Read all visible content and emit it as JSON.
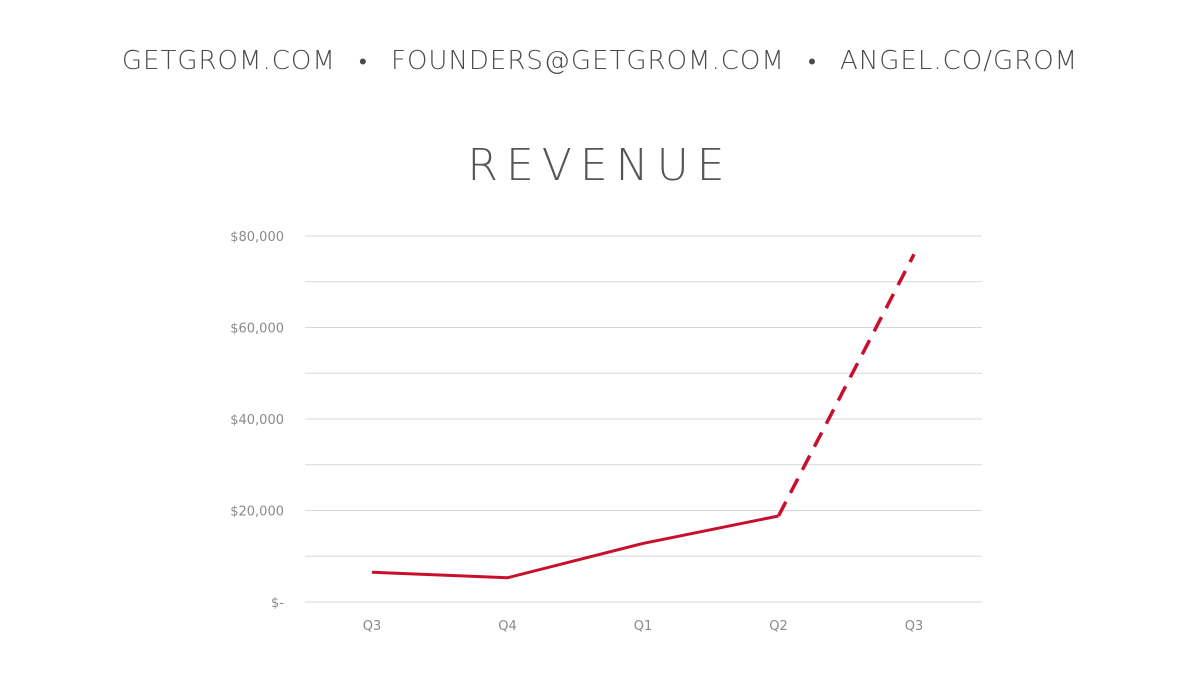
{
  "header": {
    "contacts": [
      "GETGROM.COM",
      "FOUNDERS@GETGROM.COM",
      "ANGEL.CO/GROM"
    ],
    "separator": "•"
  },
  "chart_data": {
    "type": "line",
    "title": "REVENUE",
    "xlabel": "",
    "ylabel": "",
    "categories": [
      "Q3",
      "Q4",
      "Q1",
      "Q2",
      "Q3"
    ],
    "yticks": [
      0,
      20000,
      40000,
      60000,
      80000
    ],
    "ytick_labels": [
      "$-",
      "$20,000",
      "$40,000",
      "$60,000",
      "$80,000"
    ],
    "ylim": [
      0,
      80000
    ],
    "grid": true,
    "legend": "none",
    "series": [
      {
        "values": [
          6500,
          5300,
          12800,
          18800,
          76000
        ],
        "color": "#c8102e",
        "solid_points": [
          0,
          1,
          2,
          3
        ],
        "dashed_points": [
          3,
          4
        ]
      }
    ]
  }
}
